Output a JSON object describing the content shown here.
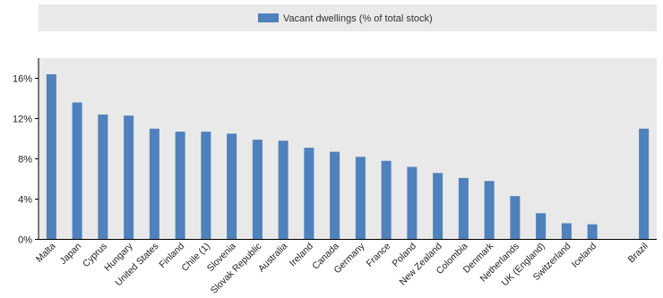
{
  "chart_data": {
    "type": "bar",
    "legend": {
      "label": "Vacant dwellings  (% of total stock)",
      "color": "#4f81bd",
      "placement": "top"
    },
    "categories": [
      "Malta",
      "Japan",
      "Cyprus",
      "Hungary",
      "United States",
      "Finland",
      "Chile (1)",
      "Slovenia",
      "Slovak Republic",
      "Australia",
      "Ireland",
      "Canada",
      "Germany",
      "France",
      "Poland",
      "New Zealand",
      "Colombia",
      "Denmark",
      "Netherlands",
      "UK (England)",
      "Switzerland",
      "Iceland",
      "",
      "Brazil"
    ],
    "series": [
      {
        "values": [
          16.4,
          13.6,
          12.4,
          12.3,
          11.0,
          10.7,
          10.7,
          10.5,
          9.9,
          9.8,
          9.1,
          8.7,
          8.2,
          7.8,
          7.2,
          6.6,
          6.1,
          5.8,
          4.3,
          2.6,
          1.6,
          1.5,
          null,
          11.0
        ]
      }
    ],
    "ylim": [
      0,
      18
    ],
    "yticks": [
      0,
      4,
      8,
      12,
      16
    ],
    "ytick_labels": [
      "0%",
      "4%",
      "8%",
      "12%",
      "16%"
    ],
    "grid": false,
    "colors": {
      "bar": "#4f81bd",
      "background": "#e9e9e9",
      "baseline": "#000000"
    }
  }
}
